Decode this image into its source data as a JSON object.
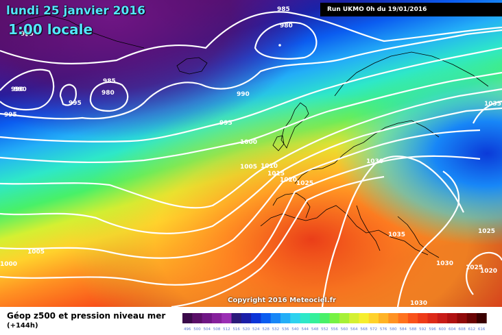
{
  "header": {
    "date": "lundi 25 janvier 2016",
    "time": "1:00 locale",
    "run": "Run UKMO 0h du 19/01/2016"
  },
  "footer": {
    "title": "Géop z500 et pression niveau mer",
    "lead": "(+144h)",
    "copyright": "Copyright 2016 Meteociel.fr"
  },
  "isobar_labels": [
    "995",
    "985",
    "980",
    "990",
    "995",
    "985",
    "980",
    "990",
    "995",
    "990",
    "995",
    "1000",
    "1005",
    "1010",
    "1015",
    "1020",
    "1025",
    "1030",
    "1035",
    "1035",
    "1025",
    "1030",
    "1025",
    "1020",
    "1030",
    "1005",
    "1000"
  ],
  "legend": {
    "values": [
      "496",
      "500",
      "504",
      "508",
      "512",
      "516",
      "520",
      "524",
      "528",
      "532",
      "536",
      "540",
      "544",
      "548",
      "552",
      "556",
      "560",
      "564",
      "568",
      "572",
      "576",
      "580",
      "584",
      "588",
      "592",
      "596",
      "600",
      "604",
      "608",
      "612",
      "616"
    ],
    "colors": [
      "#3a0a4a",
      "#5a0f68",
      "#6f1685",
      "#86209c",
      "#9a2eb4",
      "#2a1a7a",
      "#1b1ea8",
      "#0c34d8",
      "#0b5cf0",
      "#1786f7",
      "#23aef7",
      "#2dd2ef",
      "#2ee8c8",
      "#34f09a",
      "#48f068",
      "#76f243",
      "#a6f037",
      "#d4f032",
      "#f6ee2e",
      "#ffd22c",
      "#ffb326",
      "#ff9222",
      "#ff721e",
      "#f9521a",
      "#ee3b18",
      "#dd2a18",
      "#c81c18",
      "#b01212",
      "#900a0a",
      "#6a0404",
      "#3a0000"
    ]
  },
  "colors": {
    "title": "#54e6ff",
    "isobar": "#ffffff",
    "coast": "#000000"
  }
}
